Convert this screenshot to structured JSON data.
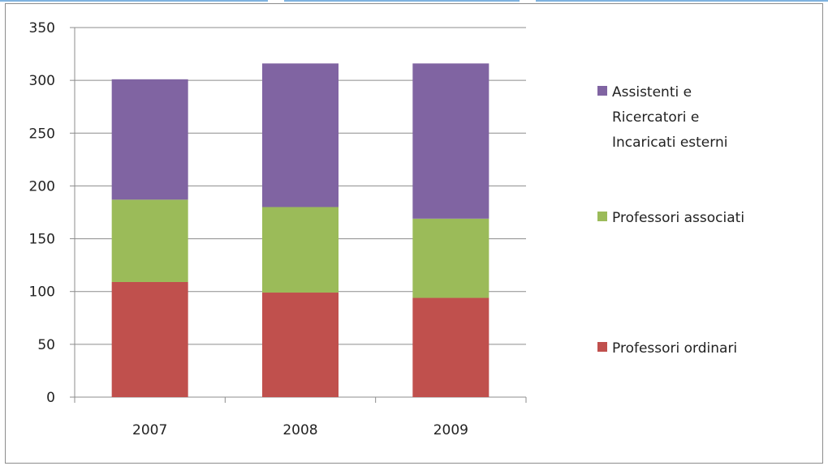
{
  "chart_data": {
    "type": "bar",
    "stacked": true,
    "categories": [
      "2007",
      "2008",
      "2009"
    ],
    "series": [
      {
        "name": "Professori ordinari",
        "values": [
          109,
          99,
          94
        ],
        "color": "#c0504d"
      },
      {
        "name": "Professori associati",
        "values": [
          78,
          81,
          75
        ],
        "color": "#9bbb59"
      },
      {
        "name": "Assistenti e Ricercatori e Incaricati esterni",
        "values": [
          114,
          136,
          147
        ],
        "color": "#8064a2"
      }
    ],
    "legend_lines": [
      [
        "Assistenti e",
        "Ricercatori e",
        "Incaricati esterni"
      ],
      [
        "Professori associati"
      ],
      [
        "Professori ordinari"
      ]
    ],
    "yticks": [
      "0",
      "50",
      "100",
      "150",
      "200",
      "250",
      "300",
      "350"
    ],
    "ylim": [
      0,
      350
    ],
    "grid": true,
    "legend_position": "right",
    "gridline_color": "#8c8c8c"
  }
}
